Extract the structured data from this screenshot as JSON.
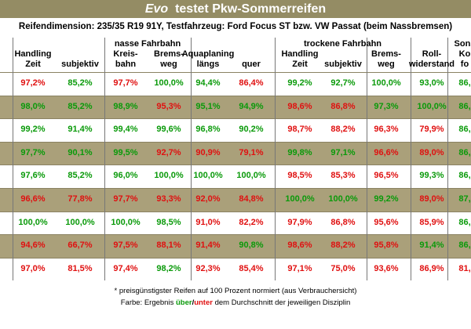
{
  "header": {
    "title_em": "Evo",
    "title": "testet Pkw-Sommerreifen",
    "subtitle": "Reifendimension: 235/35 R19 91Y, Testfahrzeug: Ford Focus ST bzw. VW Passat (beim Nassbremsen)"
  },
  "table": {
    "groups": [
      "nasse Fahrbahn",
      "trockene Fahrbahn"
    ],
    "columns": [
      [
        "Handling",
        "Zeit"
      ],
      [
        "subjektiv"
      ],
      [
        "Kreis-",
        "bahn"
      ],
      [
        "Brems-",
        "weg"
      ],
      [
        "Aquaplaning",
        "längs"
      ],
      [
        "quer"
      ],
      [
        "Handling",
        "Zeit"
      ],
      [
        "subjektiv"
      ],
      [
        "Brems-",
        "weg"
      ],
      [
        "Roll-",
        "widerstand"
      ],
      [
        "Sons",
        "Ko",
        "fo"
      ]
    ],
    "rows": [
      [
        "97,2%",
        "85,2%",
        "97,7%",
        "100,0%",
        "94,4%",
        "86,4%",
        "99,2%",
        "92,7%",
        "100,0%",
        "93,0%",
        "86,"
      ],
      [
        "98,0%",
        "85,2%",
        "98,9%",
        "95,3%",
        "95,1%",
        "94,9%",
        "98,6%",
        "86,8%",
        "97,3%",
        "100,0%",
        "86,"
      ],
      [
        "99,2%",
        "91,4%",
        "99,4%",
        "99,6%",
        "96,8%",
        "90,2%",
        "98,7%",
        "88,2%",
        "96,3%",
        "79,9%",
        "86,"
      ],
      [
        "97,7%",
        "90,1%",
        "99,5%",
        "92,7%",
        "90,9%",
        "79,1%",
        "99,8%",
        "97,1%",
        "96,6%",
        "89,0%",
        "86,"
      ],
      [
        "97,6%",
        "85,2%",
        "96,0%",
        "100,0%",
        "100,0%",
        "100,0%",
        "98,5%",
        "85,3%",
        "96,5%",
        "99,3%",
        "86,"
      ],
      [
        "96,6%",
        "77,8%",
        "97,7%",
        "93,3%",
        "92,0%",
        "84,8%",
        "100,0%",
        "100,0%",
        "99,2%",
        "89,0%",
        "87,"
      ],
      [
        "100,0%",
        "100,0%",
        "100,0%",
        "98,5%",
        "91,0%",
        "82,2%",
        "97,9%",
        "86,8%",
        "95,6%",
        "85,9%",
        "86,"
      ],
      [
        "94,6%",
        "66,7%",
        "97,5%",
        "88,1%",
        "91,4%",
        "90,8%",
        "98,6%",
        "88,2%",
        "95,8%",
        "91,4%",
        "86,"
      ],
      [
        "97,0%",
        "81,5%",
        "97,4%",
        "98,2%",
        "92,3%",
        "85,4%",
        "97,1%",
        "75,0%",
        "93,6%",
        "86,9%",
        "81,"
      ]
    ],
    "colors": [
      [
        "red",
        "green",
        "red",
        "green",
        "green",
        "red",
        "green",
        "green",
        "green",
        "green",
        "green"
      ],
      [
        "green",
        "green",
        "green",
        "red",
        "green",
        "green",
        "red",
        "red",
        "green",
        "green",
        "green"
      ],
      [
        "green",
        "green",
        "green",
        "green",
        "green",
        "green",
        "red",
        "red",
        "red",
        "red",
        "green"
      ],
      [
        "green",
        "green",
        "green",
        "red",
        "red",
        "red",
        "green",
        "green",
        "red",
        "red",
        "green"
      ],
      [
        "green",
        "green",
        "green",
        "green",
        "green",
        "green",
        "red",
        "red",
        "red",
        "green",
        "green"
      ],
      [
        "red",
        "red",
        "red",
        "red",
        "red",
        "red",
        "green",
        "green",
        "green",
        "red",
        "green"
      ],
      [
        "green",
        "green",
        "green",
        "green",
        "red",
        "red",
        "red",
        "red",
        "red",
        "red",
        "green"
      ],
      [
        "red",
        "red",
        "red",
        "red",
        "red",
        "green",
        "red",
        "red",
        "red",
        "green",
        "green"
      ],
      [
        "red",
        "red",
        "red",
        "green",
        "red",
        "red",
        "red",
        "red",
        "red",
        "red",
        "red"
      ]
    ]
  },
  "footer": {
    "note": "* preisgünstigster Reifen auf 100 Prozent normiert (aus Verbrauchersicht)",
    "legend_prefix": "Farbe: Ergebnis",
    "above": "über",
    "slash": "/",
    "below": "unter",
    "legend_suffix": "dem Durchschnitt der jeweiligen Disziplin"
  }
}
